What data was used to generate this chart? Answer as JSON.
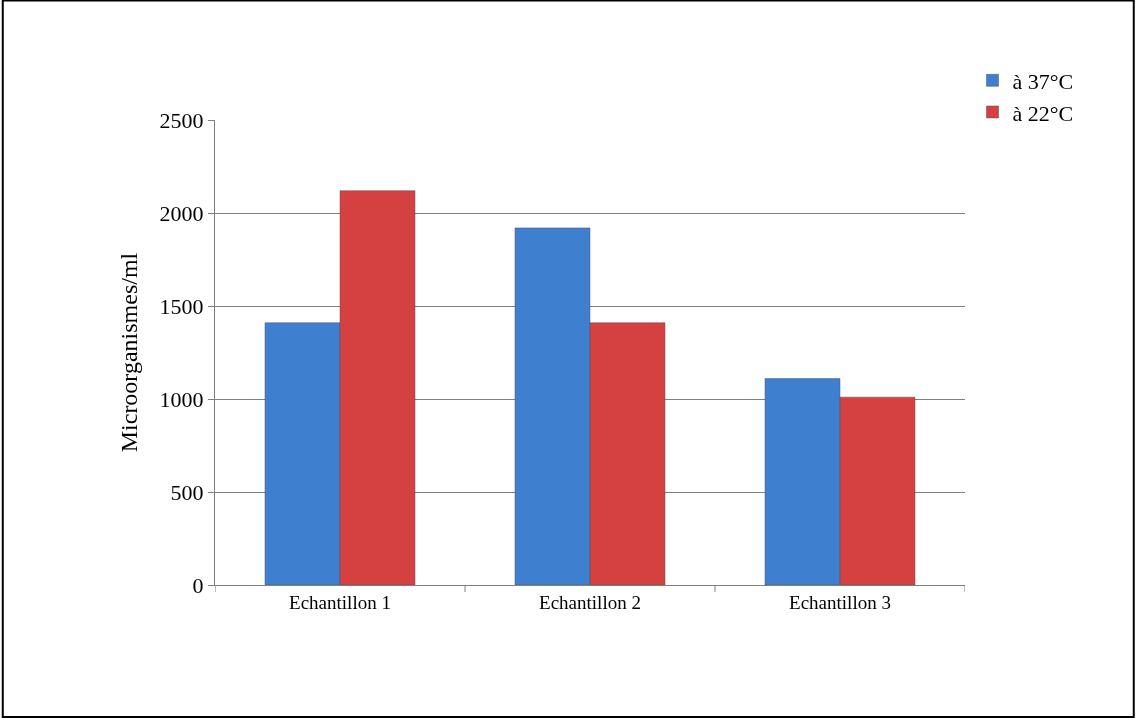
{
  "chart_data": {
    "type": "bar",
    "ylabel": "Microorganismes/ml",
    "categories": [
      "Echantillon 1",
      "Echantillon 2",
      "Echantillon 3"
    ],
    "series": [
      {
        "name": "à 37°C",
        "color": "#3f7fd0",
        "values": [
          1410,
          1920,
          1110
        ]
      },
      {
        "name": "à 22°C",
        "color": "#d44140",
        "values": [
          2120,
          1410,
          1010
        ]
      }
    ],
    "ylim": [
      0,
      2500
    ],
    "yticks": [
      0,
      500,
      1000,
      1500,
      2000,
      2500
    ],
    "grid": "y",
    "legend": "top right"
  }
}
